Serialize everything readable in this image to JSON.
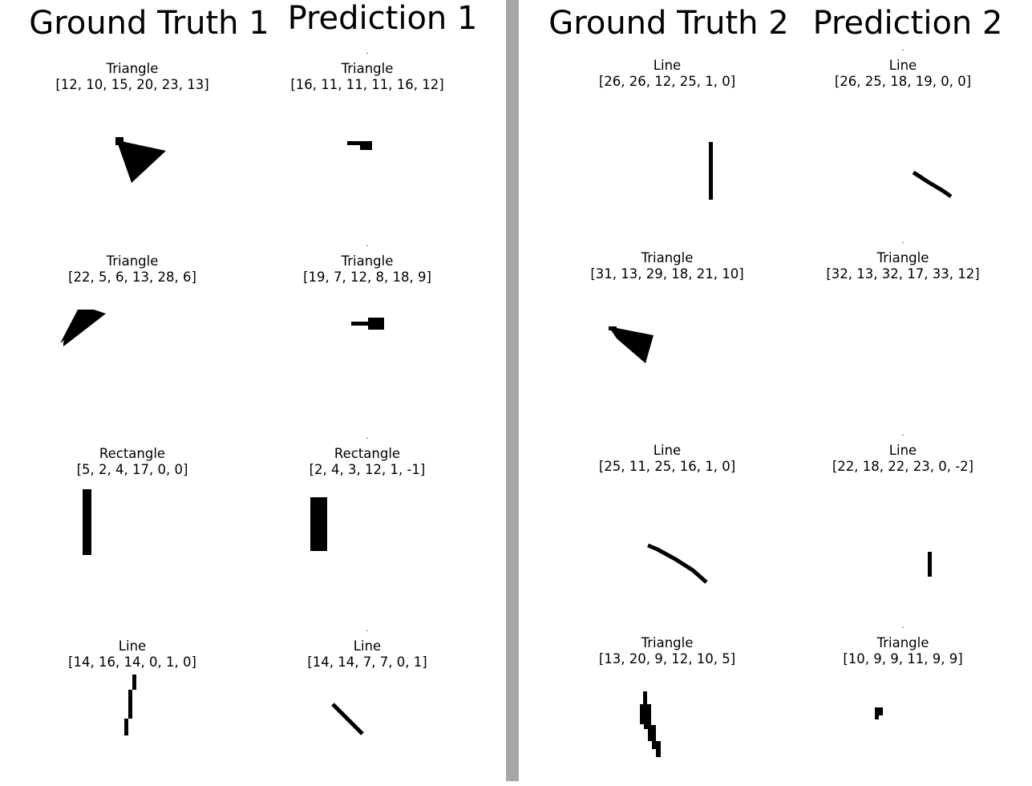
{
  "headers": {
    "gt1": "Ground Truth 1",
    "pred1": "Prediction 1",
    "gt2": "Ground Truth 2",
    "pred2": "Prediction 2"
  },
  "cells": [
    {
      "id": "gt1-r1",
      "name": "Triangle",
      "params": "[12, 10, 15, 20, 23, 13]",
      "dot": ""
    },
    {
      "id": "pred1-r1",
      "name": "Triangle",
      "params": "[16, 11, 11, 11, 16, 12]",
      "dot": "."
    },
    {
      "id": "gt2-r1",
      "name": "Line",
      "params": "[26, 26, 12, 25, 1, 0]",
      "dot": ""
    },
    {
      "id": "pred2-r1",
      "name": "Line",
      "params": "[26, 25, 18, 19, 0, 0]",
      "dot": "."
    },
    {
      "id": "gt1-r2",
      "name": "Triangle",
      "params": "[22, 5, 6, 13, 28, 6]",
      "dot": ""
    },
    {
      "id": "pred1-r2",
      "name": "Triangle",
      "params": "[19, 7, 12, 8, 18, 9]",
      "dot": "."
    },
    {
      "id": "gt2-r2",
      "name": "Triangle",
      "params": "[31, 13, 29, 18, 21, 10]",
      "dot": ""
    },
    {
      "id": "pred2-r2",
      "name": "Triangle",
      "params": "[32, 13, 32, 17, 33, 12]",
      "dot": "."
    },
    {
      "id": "gt1-r3",
      "name": "Rectangle",
      "params": "[5, 2, 4, 17, 0, 0]",
      "dot": ""
    },
    {
      "id": "pred1-r3",
      "name": "Rectangle",
      "params": "[2, 4, 3, 12, 1, -1]",
      "dot": "."
    },
    {
      "id": "gt2-r3",
      "name": "Line",
      "params": "[25, 11, 25, 16, 1, 0]",
      "dot": ""
    },
    {
      "id": "pred2-r3",
      "name": "Line",
      "params": "[22, 18, 22, 23, 0, -2]",
      "dot": "."
    },
    {
      "id": "gt1-r4",
      "name": "Line",
      "params": "[14, 16, 14, 0, 1, 0]",
      "dot": ""
    },
    {
      "id": "pred1-r4",
      "name": "Line",
      "params": "[14, 14, 7, 7, 0, 1]",
      "dot": "."
    },
    {
      "id": "gt2-r4",
      "name": "Triangle",
      "params": "[13, 20, 9, 12, 10, 5]",
      "dot": ""
    },
    {
      "id": "pred2-r4",
      "name": "Triangle",
      "params": "[10, 9, 9, 11, 9, 9]",
      "dot": "."
    }
  ]
}
